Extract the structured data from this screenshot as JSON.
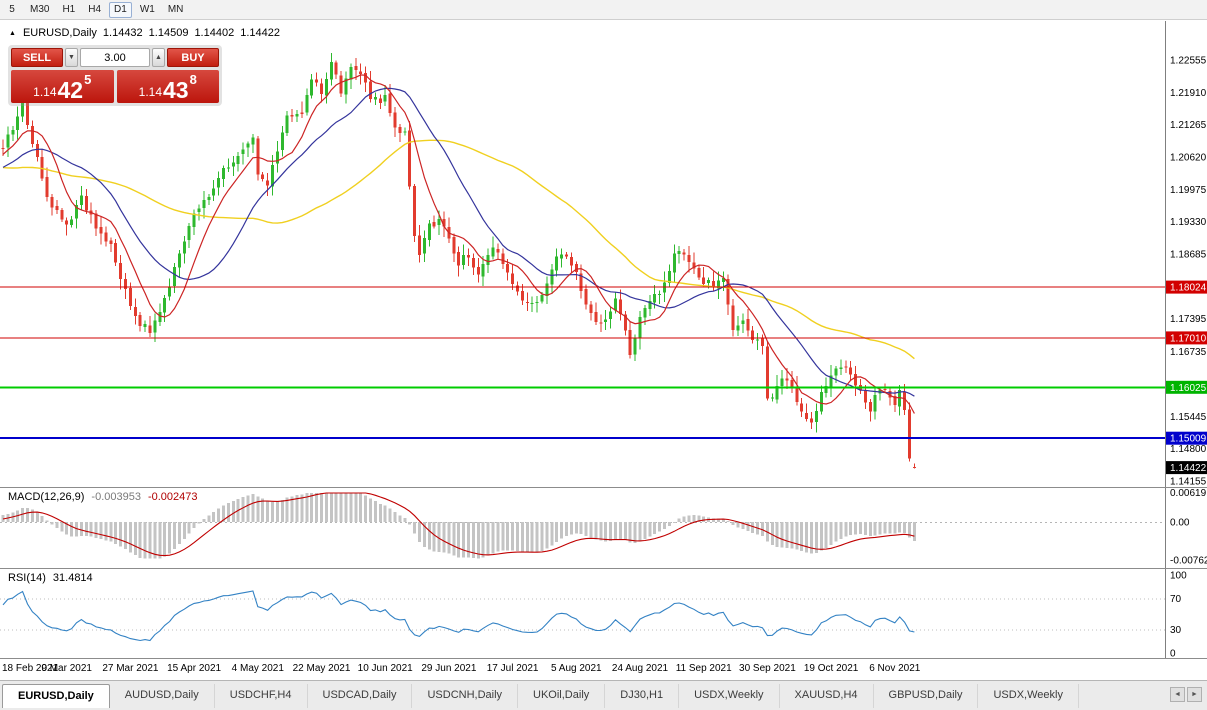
{
  "toolbar": {
    "timeframes": [
      "5",
      "M30",
      "H1",
      "H4",
      "D1",
      "W1",
      "MN"
    ],
    "active": "D1"
  },
  "chart_header": {
    "collapse_icon": "▲",
    "symbol": "EURUSD,Daily",
    "open": "1.14432",
    "high": "1.14509",
    "low": "1.14402",
    "close": "1.14422"
  },
  "trade_panel": {
    "sell_label": "SELL",
    "buy_label": "BUY",
    "lot_value": "3.00",
    "decrement_icon": "▼",
    "increment_icon": "▲",
    "sell_price": {
      "small": "1.14",
      "big": "42",
      "sup": "5"
    },
    "buy_price": {
      "small": "1.14",
      "big": "43",
      "sup": "8"
    }
  },
  "price_axis": {
    "ticks": [
      {
        "label": "1.22555",
        "price": 1.22555
      },
      {
        "label": "1.21910",
        "price": 1.2191
      },
      {
        "label": "1.21265",
        "price": 1.21265
      },
      {
        "label": "1.20620",
        "price": 1.2062
      },
      {
        "label": "1.19975",
        "price": 1.19975
      },
      {
        "label": "1.19330",
        "price": 1.1933
      },
      {
        "label": "1.18685",
        "price": 1.18685
      },
      {
        "label": "1.17395",
        "price": 1.17395
      },
      {
        "label": "1.16735",
        "price": 1.16735
      },
      {
        "label": "1.15445",
        "price": 1.15445
      },
      {
        "label": "1.14800",
        "price": 1.148
      },
      {
        "label": "1.14155",
        "price": 1.14155
      }
    ],
    "badges": [
      {
        "label": "1.18024",
        "price": 1.18024,
        "color": "#d20000"
      },
      {
        "label": "1.17010",
        "price": 1.1701,
        "color": "#d20000"
      },
      {
        "label": "1.16025",
        "price": 1.16025,
        "color": "#00b400"
      },
      {
        "label": "1.15009",
        "price": 1.15009,
        "color": "#0000cc"
      },
      {
        "label": "1.14422",
        "price": 1.14422,
        "color": "#000000"
      }
    ]
  },
  "indicators": {
    "macd": {
      "name": "MACD(12,26,9)",
      "value_main": "-0.003953",
      "value_signal": "-0.002473",
      "fast": 12,
      "slow": 26,
      "signal": 9,
      "histogram_color": "#c4c4c4",
      "signal_color": "#c00000",
      "axis": [
        {
          "label": "0.00619",
          "value": 0.00619
        },
        {
          "label": "0.00",
          "value": 0
        },
        {
          "label": "-0.00762",
          "value": -0.00762
        }
      ]
    },
    "rsi": {
      "name": "RSI(14)",
      "value": "31.4814",
      "period": 14,
      "line_color": "#3382c4",
      "levels": [
        70,
        30
      ],
      "axis": [
        {
          "label": "100",
          "value": 100
        },
        {
          "label": "70",
          "value": 70
        },
        {
          "label": "30",
          "value": 30
        },
        {
          "label": "0",
          "value": 0
        }
      ]
    }
  },
  "chart_data": {
    "type": "candlestick",
    "symbol": "EURUSD",
    "timeframe": "Daily",
    "candle_count": 187,
    "up_color": "#2eb82e",
    "down_color": "#e23b2e",
    "price_range_top": 1.23333,
    "price_range_bottom": 1.14035,
    "levels": [
      {
        "price": 1.18024,
        "color": "#d20000",
        "width": 1
      },
      {
        "price": 1.1701,
        "color": "#d20000",
        "width": 1
      },
      {
        "price": 1.16025,
        "color": "#00cc00",
        "width": 2
      },
      {
        "price": 1.15009,
        "color": "#0000cc",
        "width": 2
      }
    ],
    "moving_averages": [
      {
        "period": 50,
        "color": "#f0d020",
        "width": 1.4
      },
      {
        "period": 20,
        "color": "#34349c",
        "width": 1.2
      },
      {
        "period": 8,
        "color": "#cc2424",
        "width": 1.2
      }
    ],
    "anchors": [
      [
        0,
        1.2085
      ],
      [
        2,
        1.2115
      ],
      [
        4,
        1.217
      ],
      [
        6,
        1.209
      ],
      [
        9,
        1.198
      ],
      [
        13,
        1.192
      ],
      [
        16,
        1.198
      ],
      [
        19,
        1.1925
      ],
      [
        22,
        1.189
      ],
      [
        25,
        1.179
      ],
      [
        28,
        1.173
      ],
      [
        30,
        1.1715
      ],
      [
        33,
        1.178
      ],
      [
        36,
        1.187
      ],
      [
        39,
        1.1955
      ],
      [
        42,
        1.198
      ],
      [
        45,
        1.2035
      ],
      [
        48,
        1.2065
      ],
      [
        51,
        1.211
      ],
      [
        52,
        1.202
      ],
      [
        54,
        1.2005
      ],
      [
        56,
        1.2075
      ],
      [
        58,
        1.214
      ],
      [
        61,
        1.215
      ],
      [
        63,
        1.2225
      ],
      [
        65,
        1.218
      ],
      [
        67,
        1.225
      ],
      [
        69,
        1.2195
      ],
      [
        71,
        1.2245
      ],
      [
        73,
        1.222
      ],
      [
        75,
        1.2185
      ],
      [
        77,
        1.217
      ],
      [
        78,
        1.218
      ],
      [
        80,
        1.2125
      ],
      [
        82,
        1.211
      ],
      [
        83,
        1.1995
      ],
      [
        84,
        1.1905
      ],
      [
        85,
        1.1865
      ],
      [
        87,
        1.192
      ],
      [
        89,
        1.1935
      ],
      [
        91,
        1.19
      ],
      [
        93,
        1.185
      ],
      [
        95,
        1.1865
      ],
      [
        97,
        1.1825
      ],
      [
        99,
        1.1875
      ],
      [
        101,
        1.188
      ],
      [
        104,
        1.1805
      ],
      [
        106,
        1.178
      ],
      [
        108,
        1.1775
      ],
      [
        110,
        1.1785
      ],
      [
        112,
        1.1845
      ],
      [
        114,
        1.187
      ],
      [
        117,
        1.1835
      ],
      [
        119,
        1.176
      ],
      [
        121,
        1.1735
      ],
      [
        123,
        1.173
      ],
      [
        125,
        1.178
      ],
      [
        127,
        1.1715
      ],
      [
        128,
        1.1675
      ],
      [
        130,
        1.1745
      ],
      [
        132,
        1.177
      ],
      [
        134,
        1.1795
      ],
      [
        136,
        1.184
      ],
      [
        137,
        1.1875
      ],
      [
        139,
        1.1865
      ],
      [
        141,
        1.184
      ],
      [
        143,
        1.1815
      ],
      [
        145,
        1.181
      ],
      [
        147,
        1.1825
      ],
      [
        149,
        1.1725
      ],
      [
        151,
        1.173
      ],
      [
        153,
        1.17
      ],
      [
        155,
        1.1685
      ],
      [
        156,
        1.158
      ],
      [
        158,
        1.16
      ],
      [
        160,
        1.1625
      ],
      [
        162,
        1.157
      ],
      [
        164,
        1.1545
      ],
      [
        165,
        1.153
      ],
      [
        167,
        1.1595
      ],
      [
        169,
        1.163
      ],
      [
        171,
        1.165
      ],
      [
        173,
        1.1625
      ],
      [
        175,
        1.16
      ],
      [
        177,
        1.156
      ],
      [
        179,
        1.1605
      ],
      [
        181,
        1.158
      ],
      [
        182,
        1.1565
      ],
      [
        183,
        1.159
      ],
      [
        184,
        1.1555
      ],
      [
        185,
        1.1452
      ],
      [
        186,
        1.14422
      ]
    ],
    "pre_anchors": [
      [
        -60,
        1.223
      ],
      [
        -25,
        1.196
      ],
      [
        -1,
        1.208
      ]
    ],
    "pre_count": 60,
    "last_candle": [
      1.14432,
      1.14509,
      1.14402,
      1.14422
    ],
    "date_labels": [
      [
        "18 Feb 2021",
        0
      ],
      [
        "9 Mar 2021",
        13
      ],
      [
        "27 Mar 2021",
        26
      ],
      [
        "15 Apr 2021",
        39
      ],
      [
        "4 May 2021",
        52
      ],
      [
        "22 May 2021",
        65
      ],
      [
        "10 Jun 2021",
        78
      ],
      [
        "29 Jun 2021",
        91
      ],
      [
        "17 Jul 2021",
        104
      ],
      [
        "5 Aug 2021",
        117
      ],
      [
        "24 Aug 2021",
        130
      ],
      [
        "11 Sep 2021",
        143
      ],
      [
        "30 Sep 2021",
        156
      ],
      [
        "19 Oct 2021",
        169
      ],
      [
        "6 Nov 2021",
        182
      ]
    ]
  },
  "tabs": {
    "items": [
      "EURUSD,Daily",
      "AUDUSD,Daily",
      "USDCHF,H4",
      "USDCAD,Daily",
      "USDCNH,Daily",
      "UKOil,Daily",
      "DJ30,H1",
      "USDX,Weekly",
      "XAUUSD,H4",
      "GBPUSD,Daily",
      "USDX,Weekly"
    ],
    "active_index": 0,
    "scroll_left_icon": "◄",
    "scroll_right_icon": "►"
  }
}
